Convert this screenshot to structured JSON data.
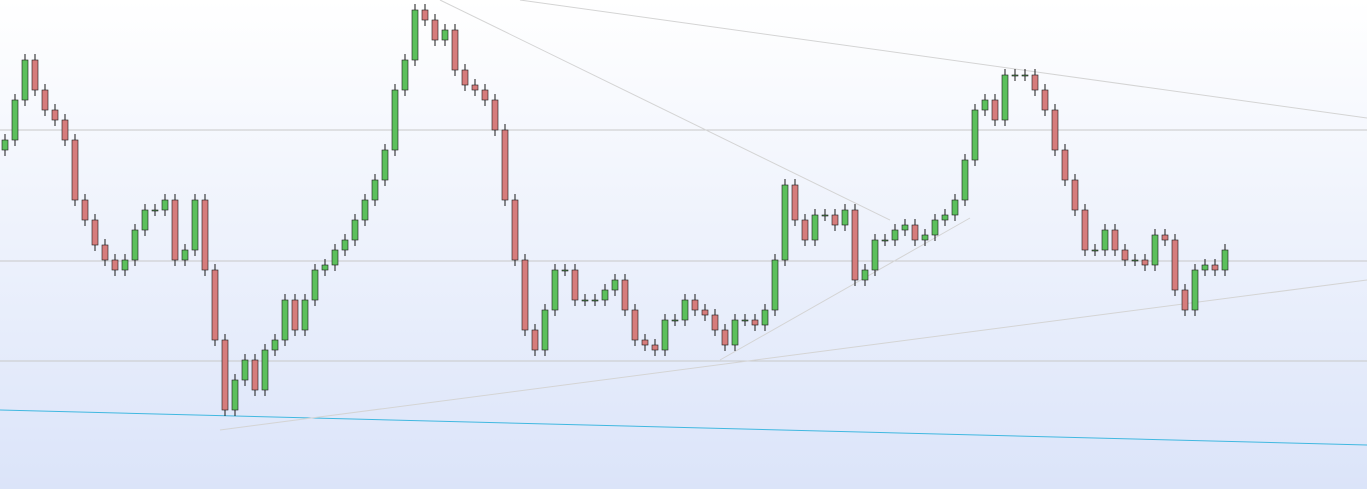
{
  "chart_data": {
    "type": "candlestick",
    "xlim": [
      -0.5,
      136.2
    ],
    "ylim": [
      0,
      489
    ],
    "up_color": "#5cc05c",
    "down_color": "#d67c7c",
    "wick_color": "#1a1a1a",
    "open": [
      339,
      349,
      389,
      429,
      399,
      379,
      369,
      349,
      289,
      269,
      244,
      229,
      219,
      229,
      259,
      279,
      279,
      289,
      229,
      239,
      289,
      219,
      149,
      79,
      109,
      129,
      99,
      139,
      149,
      189,
      159,
      189,
      219,
      224,
      239,
      249,
      269,
      289,
      309,
      339,
      399,
      429,
      479,
      469,
      449,
      459,
      419,
      404,
      399,
      389,
      359,
      289,
      229,
      159,
      139,
      179,
      219,
      219,
      189,
      189,
      189,
      199,
      209,
      179,
      149,
      144,
      139,
      169,
      169,
      189,
      179,
      174,
      159,
      144,
      169,
      169,
      164,
      179,
      229,
      304,
      269,
      249,
      274,
      274,
      264,
      279,
      209,
      219,
      249,
      249,
      259,
      264,
      249,
      254,
      269,
      274,
      289,
      329,
      379,
      389,
      369,
      414,
      414,
      414,
      399,
      379,
      339,
      309,
      279,
      239,
      239,
      259,
      239,
      229,
      229,
      224,
      254,
      249,
      199,
      179,
      219,
      224,
      219
    ],
    "high": [
      355,
      395,
      435,
      435,
      405,
      385,
      375,
      355,
      295,
      275,
      250,
      235,
      235,
      265,
      285,
      285,
      295,
      295,
      245,
      295,
      295,
      225,
      155,
      115,
      135,
      135,
      145,
      155,
      195,
      195,
      195,
      225,
      230,
      245,
      255,
      275,
      295,
      315,
      345,
      405,
      435,
      485,
      485,
      475,
      465,
      465,
      425,
      410,
      405,
      395,
      365,
      295,
      235,
      165,
      185,
      225,
      225,
      225,
      195,
      195,
      205,
      215,
      215,
      185,
      155,
      150,
      175,
      175,
      195,
      195,
      185,
      180,
      165,
      175,
      175,
      175,
      185,
      235,
      310,
      310,
      275,
      280,
      280,
      280,
      285,
      285,
      225,
      255,
      255,
      265,
      270,
      270,
      260,
      275,
      280,
      295,
      335,
      385,
      395,
      395,
      420,
      420,
      420,
      420,
      405,
      385,
      345,
      315,
      285,
      245,
      265,
      265,
      245,
      235,
      235,
      260,
      260,
      255,
      205,
      225,
      230,
      230,
      245
    ],
    "low": [
      333,
      343,
      383,
      393,
      373,
      363,
      343,
      283,
      263,
      238,
      223,
      213,
      213,
      223,
      253,
      273,
      273,
      223,
      223,
      233,
      213,
      143,
      73,
      73,
      103,
      93,
      93,
      133,
      143,
      153,
      153,
      183,
      213,
      218,
      233,
      243,
      263,
      283,
      303,
      333,
      393,
      423,
      463,
      443,
      443,
      413,
      398,
      393,
      383,
      353,
      283,
      223,
      153,
      133,
      133,
      173,
      213,
      183,
      183,
      183,
      183,
      193,
      173,
      143,
      138,
      133,
      133,
      163,
      163,
      173,
      168,
      153,
      138,
      138,
      163,
      158,
      158,
      173,
      223,
      263,
      243,
      243,
      268,
      258,
      258,
      203,
      203,
      213,
      243,
      243,
      253,
      243,
      243,
      248,
      263,
      268,
      283,
      323,
      373,
      363,
      363,
      408,
      408,
      393,
      373,
      333,
      303,
      273,
      233,
      233,
      233,
      233,
      223,
      223,
      218,
      218,
      243,
      193,
      173,
      173,
      213,
      213,
      213
    ],
    "close": [
      349,
      389,
      429,
      399,
      379,
      369,
      349,
      289,
      269,
      244,
      229,
      219,
      229,
      259,
      279,
      279,
      289,
      229,
      239,
      289,
      219,
      149,
      79,
      109,
      129,
      99,
      139,
      149,
      189,
      159,
      189,
      219,
      224,
      239,
      249,
      269,
      289,
      309,
      339,
      399,
      429,
      479,
      469,
      449,
      459,
      419,
      404,
      399,
      389,
      359,
      289,
      229,
      159,
      139,
      179,
      219,
      219,
      189,
      189,
      189,
      199,
      209,
      179,
      149,
      144,
      139,
      169,
      169,
      189,
      179,
      174,
      159,
      144,
      169,
      169,
      164,
      179,
      229,
      304,
      269,
      249,
      274,
      274,
      264,
      279,
      209,
      219,
      249,
      249,
      259,
      264,
      249,
      254,
      269,
      274,
      289,
      329,
      379,
      389,
      369,
      414,
      414,
      414,
      399,
      379,
      339,
      309,
      279,
      239,
      239,
      259,
      239,
      229,
      229,
      224,
      254,
      249,
      199,
      179,
      219,
      224,
      219,
      239
    ],
    "levels": [
      359,
      228,
      128
    ],
    "level_color": "#c8c8c8",
    "trendlines": [
      {
        "color": "#41b8e0",
        "x": [
          -0.5,
          136.2
        ],
        "y": [
          79,
          44
        ]
      },
      {
        "color": "#d4d4d4",
        "x": [
          43.5,
          88.5
        ],
        "y": [
          489,
          269
        ]
      },
      {
        "color": "#d4d4d4",
        "x": [
          51.5,
          136.2
        ],
        "y": [
          489,
          371
        ]
      },
      {
        "color": "#d4d4d4",
        "x": [
          21.5,
          136.2
        ],
        "y": [
          59,
          209
        ]
      },
      {
        "color": "#d4d4d4",
        "x": [
          71.5,
          96.5
        ],
        "y": [
          129,
          271
        ]
      }
    ]
  }
}
